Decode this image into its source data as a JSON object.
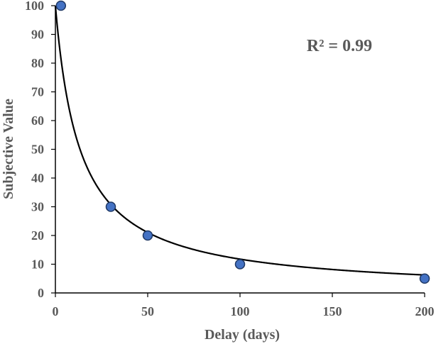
{
  "chart_data": {
    "type": "scatter",
    "xlabel": "Delay (days)",
    "ylabel": "Subjective Value",
    "xlim": [
      0,
      200
    ],
    "ylim": [
      0,
      100
    ],
    "xticks": [
      0,
      50,
      100,
      150,
      200
    ],
    "yticks": [
      0,
      10,
      20,
      30,
      40,
      50,
      60,
      70,
      80,
      90,
      100
    ],
    "grid": false,
    "legend": "none",
    "annotation": "R² = 0.99",
    "points": [
      {
        "x": 3,
        "y": 100
      },
      {
        "x": 30,
        "y": 30
      },
      {
        "x": 50,
        "y": 20
      },
      {
        "x": 100,
        "y": 10
      },
      {
        "x": 200,
        "y": 5
      }
    ],
    "fit": {
      "model": "hyperbolic",
      "equation": "y = 100 / (1 + k*x)",
      "k": 0.075
    },
    "colors": {
      "marker_fill": "#4472C4",
      "marker_stroke": "#1F3864",
      "fit_line": "#000000",
      "axis": "#000000",
      "text": "#595959"
    }
  }
}
